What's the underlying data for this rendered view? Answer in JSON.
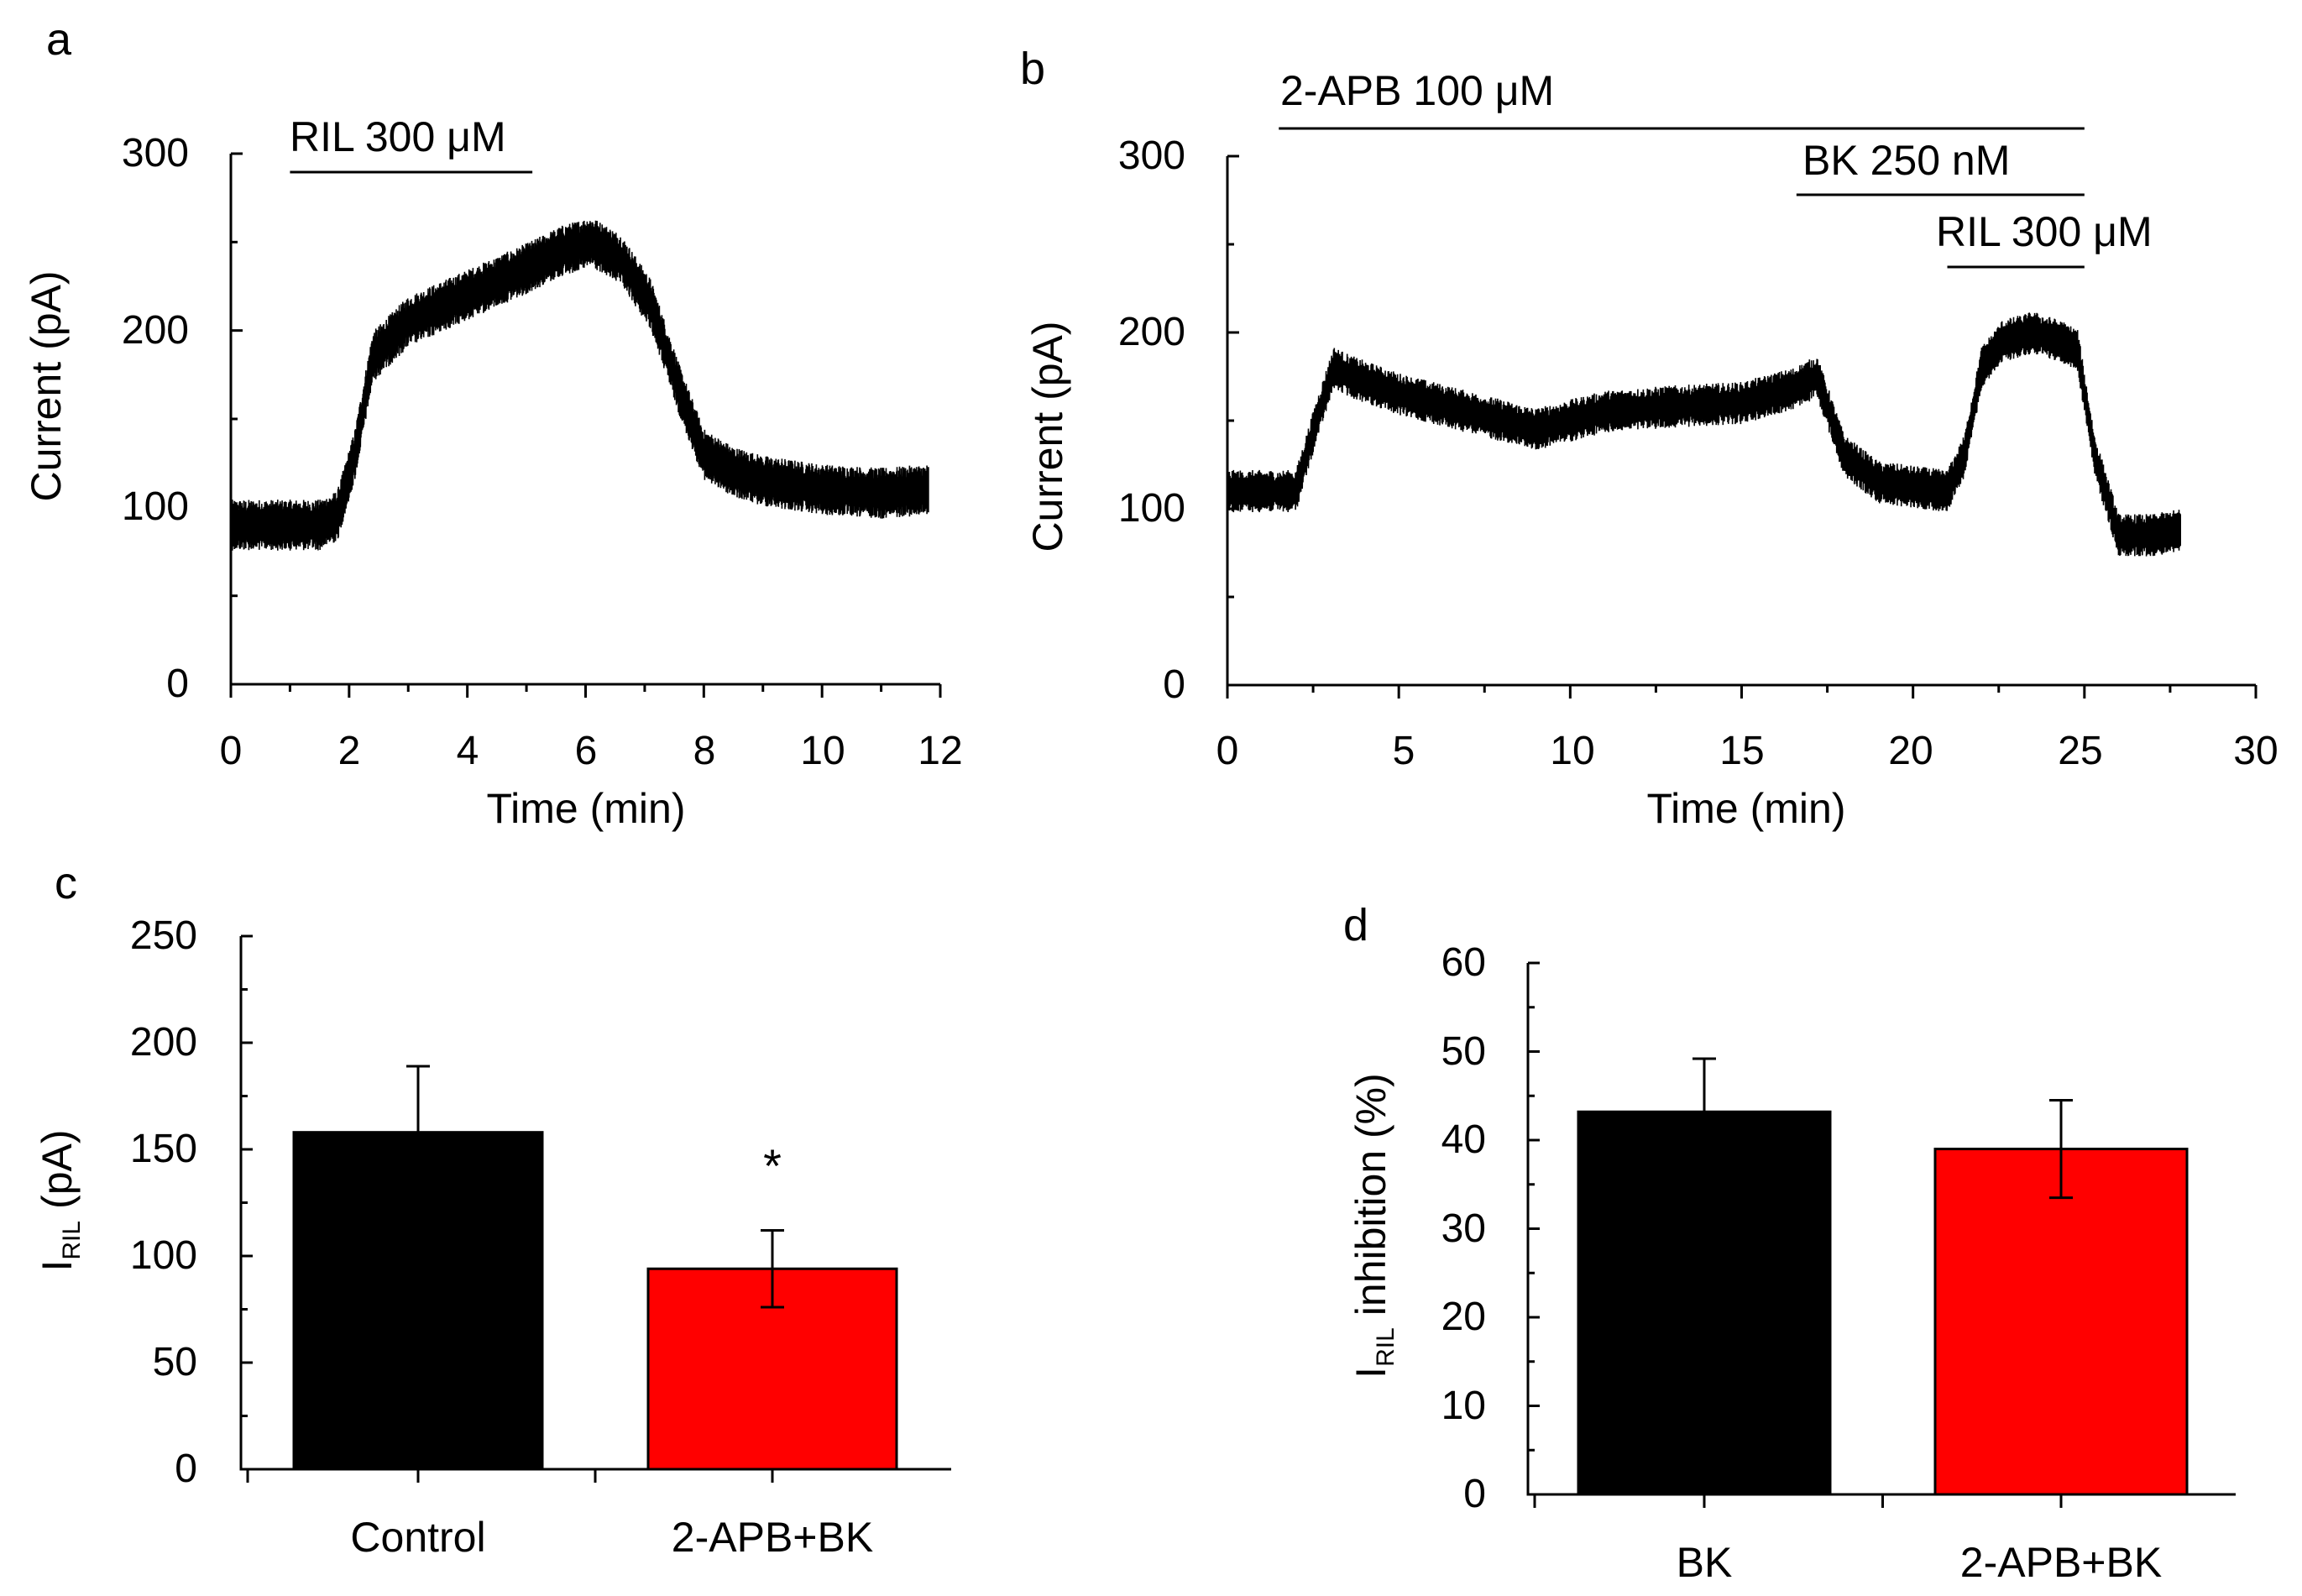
{
  "colors": {
    "axis": "#000000",
    "control_bar": "#000000",
    "treatment_bar": "#ff0000"
  },
  "chart_data": [
    {
      "panel": "a",
      "type": "line",
      "xlabel": "Time (min)",
      "ylabel": "Current (pA)",
      "xlim": [
        0,
        12
      ],
      "ylim": [
        0,
        300
      ],
      "xticks": [
        "0",
        "2",
        "4",
        "6",
        "8",
        "10",
        "12"
      ],
      "yticks": [
        "0",
        "100",
        "200",
        "300"
      ],
      "series": [
        {
          "name": "current",
          "x": [
            0,
            1.5,
            1.8,
            2.1,
            2.4,
            3,
            4,
            5,
            5.6,
            6.1,
            6.6,
            7.1,
            7.6,
            8,
            8.5,
            9,
            10,
            11,
            11.8
          ],
          "y": [
            90,
            90,
            95,
            130,
            185,
            205,
            220,
            235,
            245,
            250,
            240,
            215,
            165,
            130,
            120,
            115,
            110,
            108,
            110
          ]
        }
      ],
      "noise_amplitude": 12,
      "annotations": [
        {
          "label": "RIL 300 μM",
          "x_start": 1,
          "x_end": 5.1
        }
      ]
    },
    {
      "panel": "b",
      "type": "line",
      "xlabel": "Time (min)",
      "ylabel": "Current (pA)",
      "xlim": [
        0,
        30
      ],
      "ylim": [
        0,
        300
      ],
      "xticks": [
        "0",
        "5",
        "10",
        "15",
        "20",
        "25",
        "30"
      ],
      "yticks": [
        "0",
        "100",
        "200",
        "300"
      ],
      "series": [
        {
          "name": "current",
          "x": [
            0,
            2,
            2.6,
            3.1,
            3.6,
            5,
            7,
            9,
            11,
            13,
            15,
            16.5,
            17.2,
            18,
            19,
            21,
            21.5,
            22,
            22.6,
            23.5,
            24.3,
            24.8,
            25.3,
            26,
            27,
            27.8
          ],
          "y": [
            110,
            110,
            150,
            180,
            175,
            165,
            155,
            145,
            155,
            158,
            160,
            168,
            175,
            130,
            115,
            110,
            130,
            180,
            195,
            200,
            195,
            190,
            130,
            85,
            85,
            88
          ]
        }
      ],
      "noise_amplitude": 10,
      "annotations": [
        {
          "label": "2-APB 100 μM",
          "x_start": 1.5,
          "x_end": 25
        },
        {
          "label": "BK 250 nM",
          "x_start": 16.6,
          "x_end": 25
        },
        {
          "label": "RIL 300 μM",
          "x_start": 21,
          "x_end": 25
        }
      ]
    },
    {
      "panel": "c",
      "type": "bar",
      "ylabel_main": "I",
      "ylabel_sub": "RIL",
      "ylabel_unit": "(pA)",
      "ylim": [
        0,
        250
      ],
      "yticks": [
        "0",
        "50",
        "100",
        "150",
        "200",
        "250"
      ],
      "categories": [
        "Control",
        "2-APB+BK"
      ],
      "values": [
        158,
        94
      ],
      "errors": [
        31,
        18
      ],
      "significance": [
        "",
        "*"
      ]
    },
    {
      "panel": "d",
      "type": "bar",
      "ylabel_main": "I",
      "ylabel_sub": "RIL",
      "ylabel_unit": "inhibition (%)",
      "ylim": [
        0,
        60
      ],
      "yticks": [
        "0",
        "10",
        "20",
        "30",
        "40",
        "50",
        "60"
      ],
      "categories": [
        "BK",
        "2-APB+BK"
      ],
      "values": [
        43.2,
        39
      ],
      "errors": [
        6,
        5.5
      ]
    }
  ]
}
